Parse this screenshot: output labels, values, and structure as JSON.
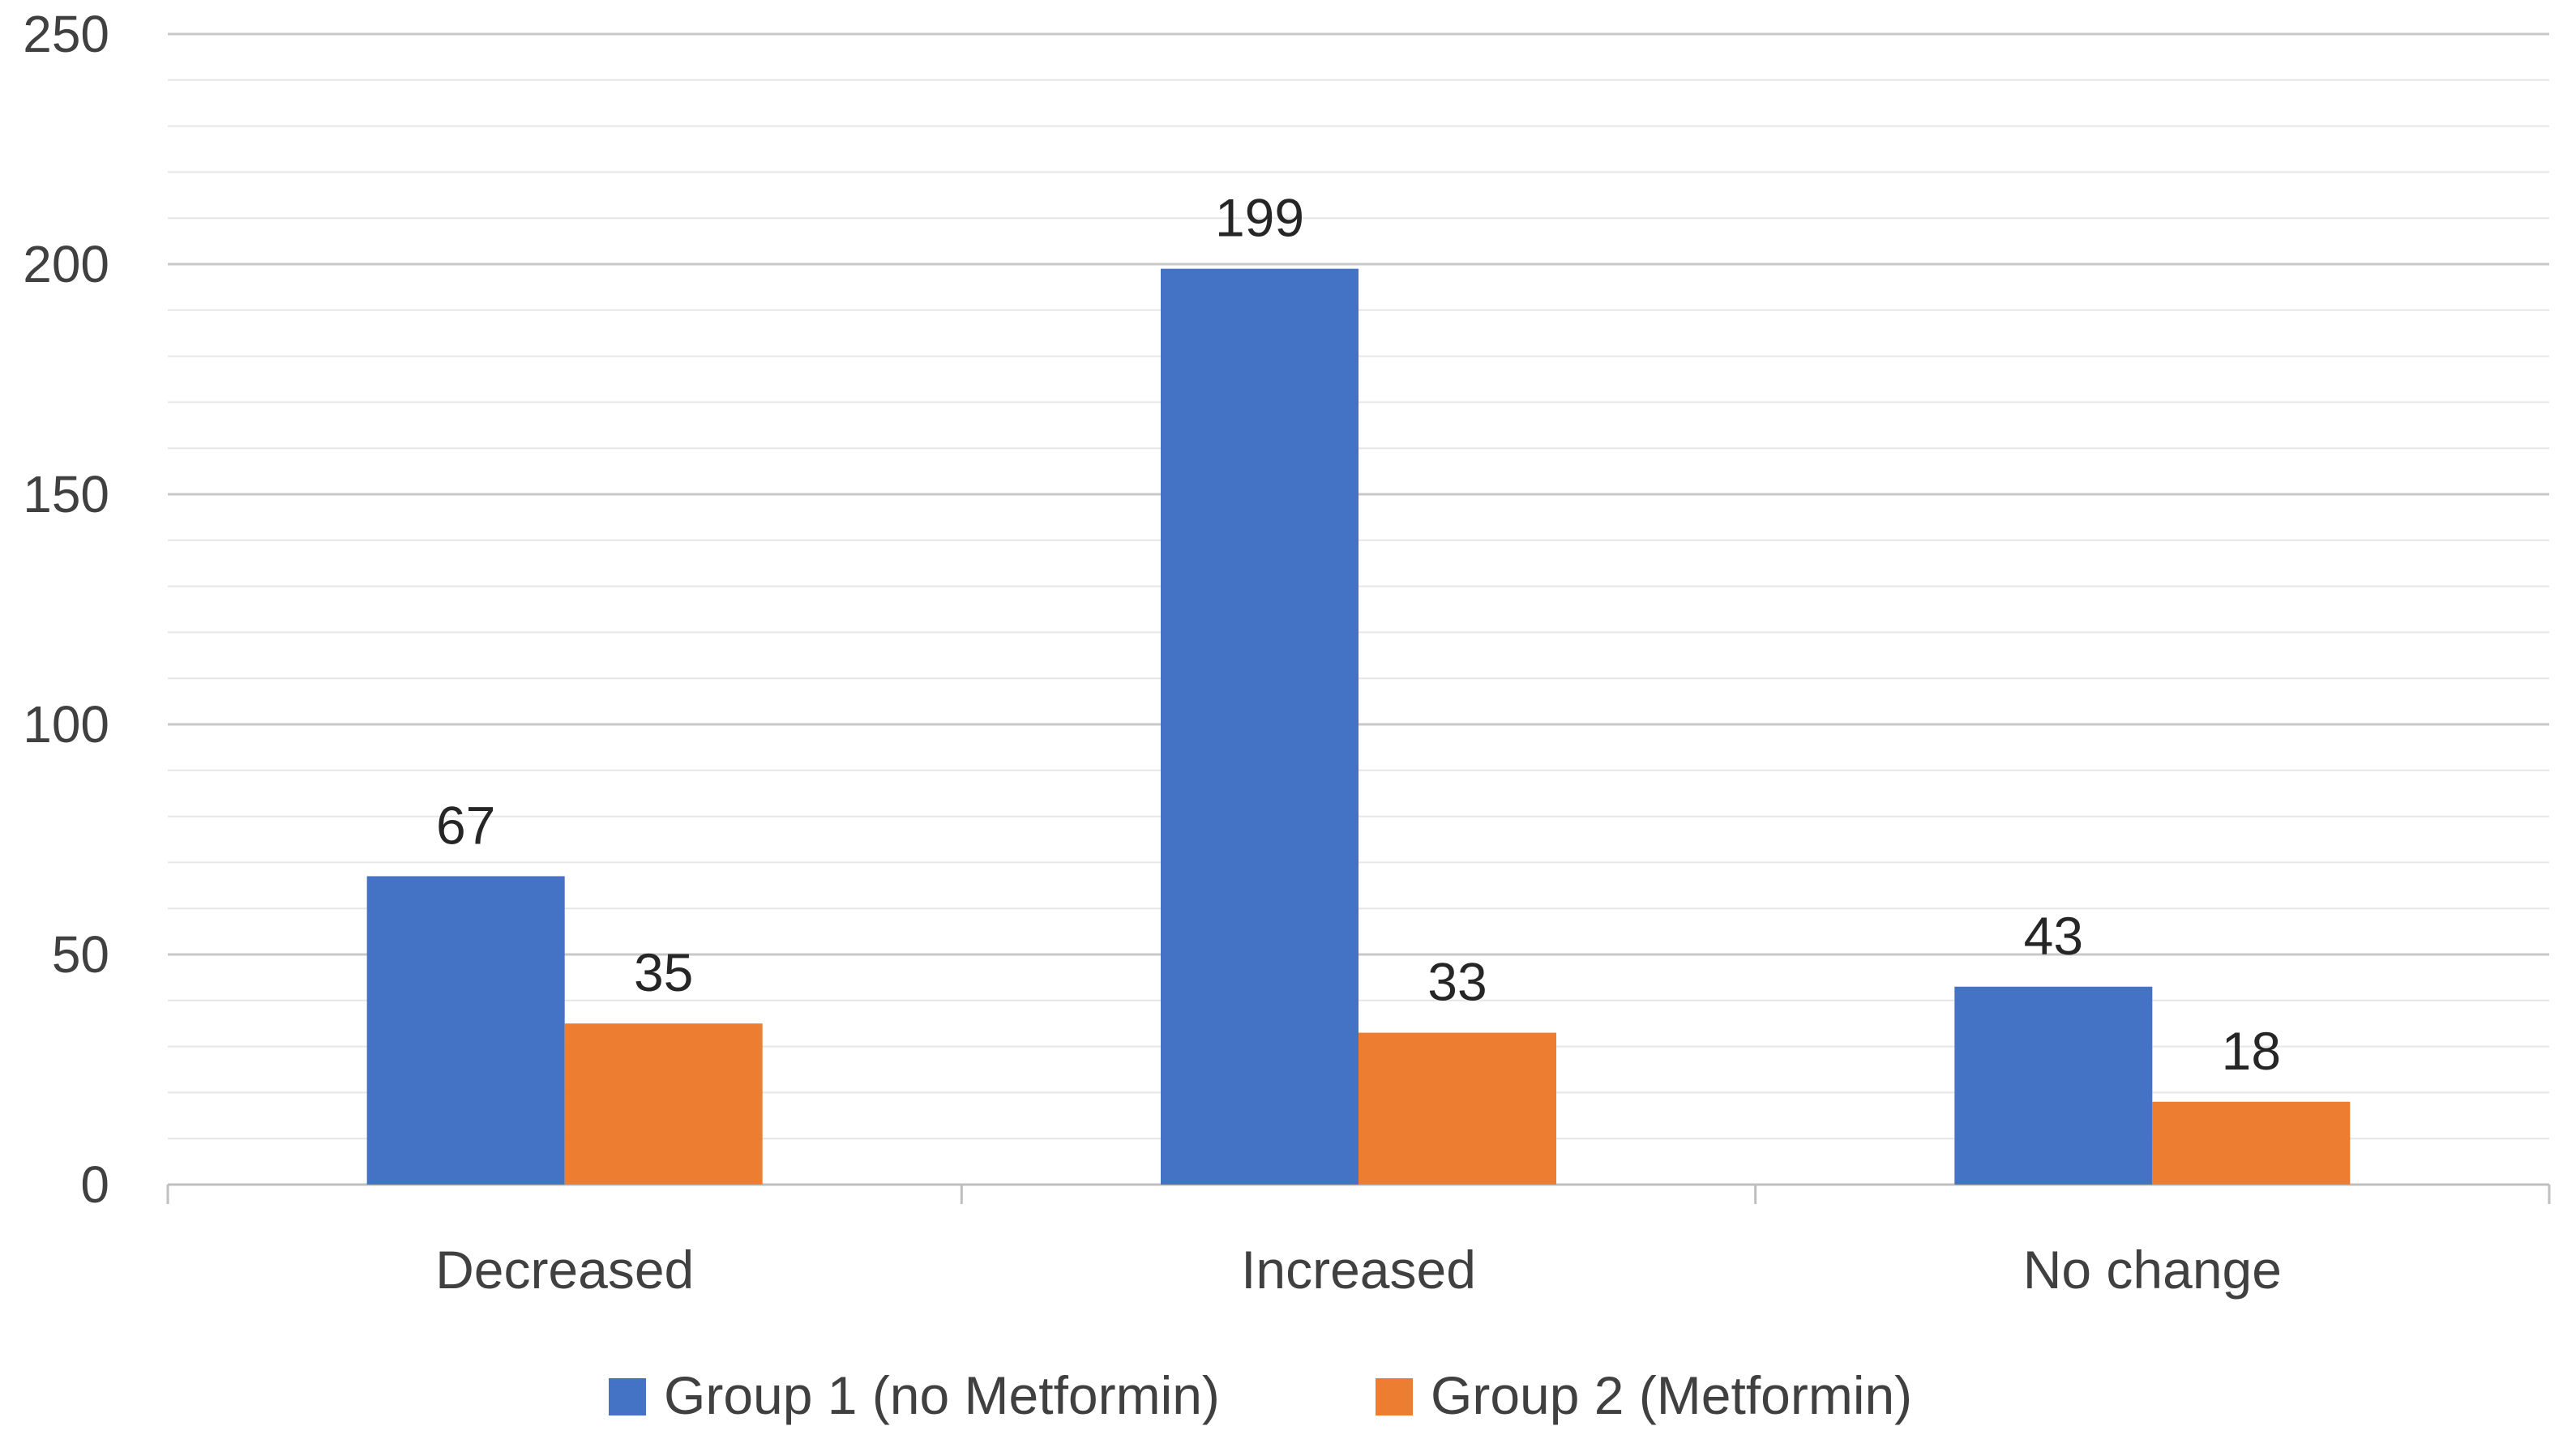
{
  "chart_data": {
    "type": "bar",
    "categories": [
      "Decreased",
      "Increased",
      "No change"
    ],
    "series": [
      {
        "name": "Group 1 (no Metformin)",
        "values": [
          67,
          199,
          43
        ],
        "color": "#4472C4"
      },
      {
        "name": "Group 2 (Metformin)",
        "values": [
          35,
          33,
          18
        ],
        "color": "#ED7D31"
      }
    ],
    "ylim": [
      0,
      250
    ],
    "y_ticks": [
      0,
      50,
      100,
      150,
      200,
      250
    ],
    "minor_grid_step": 10,
    "grid": true,
    "data_labels": true,
    "legend_position": "bottom",
    "title": "",
    "xlabel": "",
    "ylabel": ""
  }
}
